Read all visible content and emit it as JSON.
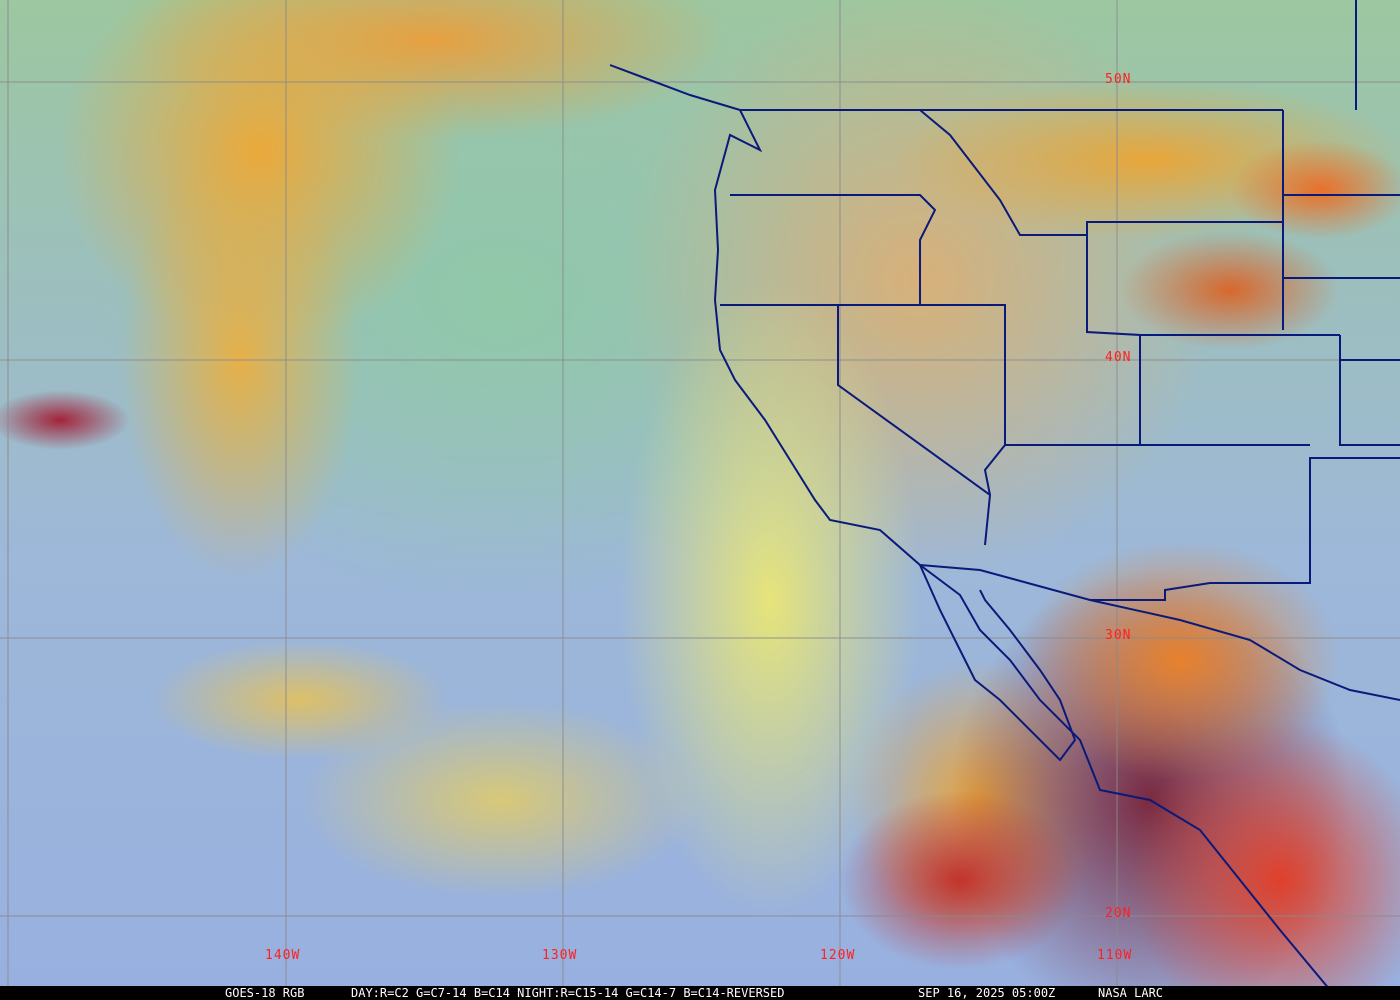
{
  "map": {
    "satellite_product": "GOES-18 RGB",
    "recipe": "DAY:R=C2 G=C7-14 B=C14 NIGHT:R=C15-14 G=C14-7 B=C14-REVERSED",
    "timestamp": "SEP 16, 2025 05:00Z",
    "credit": "NASA LARC",
    "latitude_labels": [
      "50N",
      "40N",
      "30N",
      "20N"
    ],
    "longitude_labels": [
      "140W",
      "130W",
      "120W",
      "110W"
    ],
    "colors": {
      "border": "#0a1a7a",
      "grid": "#8a8a8a",
      "label": "#ff2020"
    }
  }
}
